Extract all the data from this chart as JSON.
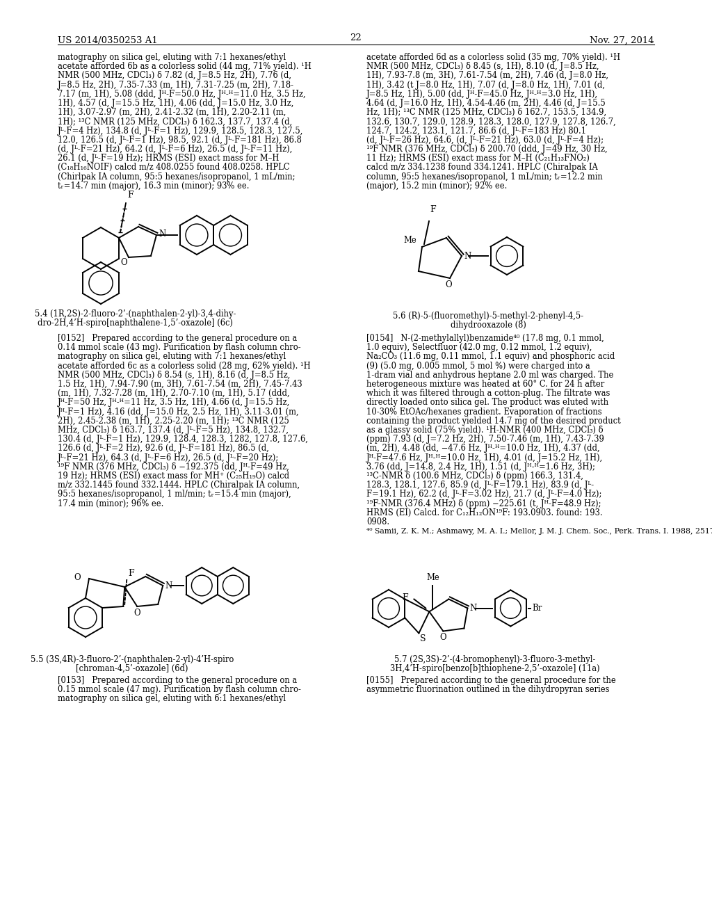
{
  "page_header_left": "US 2014/0350253 A1",
  "page_header_right": "Nov. 27, 2014",
  "page_number": "22",
  "bg_color": "#ffffff",
  "text_color": "#000000",
  "left_column_lines": [
    "matography on silica gel, eluting with 7:1 hexanes/ethyl",
    "acetate afforded 6b as a colorless solid (44 mg, 71% yield). ¹H",
    "NMR (500 MHz, CDCl₃) δ 7.82 (d, J=8.5 Hz, 2H), 7.76 (d,",
    "J=8.5 Hz, 2H), 7.35-7.33 (m, 1H), 7.31-7.25 (m, 2H), 7.18-",
    "7.17 (m, 1H), 5.08 (ddd, Jᴴ-F=50.0 Hz, Jᴴ-ᴴ=11.0 Hz, 3.5 Hz,",
    "1H), 4.57 (d, J=15.5 Hz, 1H), 4.06 (dd, J=15.0 Hz, 3.0 Hz,",
    "1H), 3.07-2.97 (m, 2H), 2.41-2.32 (m, 1H), 2.20-2.11 (m,",
    "1H); ¹³C NMR (125 MHz, CDCl₃) δ 162.3, 137.7, 137.4 (d,",
    "Jᴸ-F=4 Hz), 134.8 (d, Jᴸ-F=1 Hz), 129.9, 128.5, 128.3, 127.5,",
    "12.0, 126.5 (d, Jᴸ-F=1 Hz), 98.5, 92.1 (d, Jᴸ-F=181 Hz), 86.8",
    "(d, Jᴸ-F=21 Hz), 64.2 (d, Jᴸ-F=6 Hz), 26.5 (d, Jᴸ-F=11 Hz),",
    "26.1 (d, Jᴸ-F=19 Hz); HRMS (ESI) exact mass for M–H",
    "(C₁₈H₁₆NOIF) calcd m/z 408.0255 found 408.0258. HPLC",
    "(Chirlpak IA column, 95:5 hexanes/isopropanol, 1 mL/min;",
    "tᵣ=14.7 min (major), 16.3 min (minor); 93% ee."
  ],
  "right_column_lines": [
    "acetate afforded 6d as a colorless solid (35 mg, 70% yield). ¹H",
    "NMR (500 MHz, CDCl₃) δ 8.45 (s, 1H), 8.10 (d, J=8.5 Hz,",
    "1H), 7.93-7.8 (m, 3H), 7.61-7.54 (m, 2H), 7.46 (d, J=8.0 Hz,",
    "1H), 3.42 (t J=8.0 Hz, 1H), 7.07 (d, J=8.0 Hz, 1H), 7.01 (d,",
    "J=8.5 Hz, 1H), 5.00 (dd, Jᴴ-F=45.0 Hz, Jᴴ-ᴴ=3.0 Hz, 1H),",
    "4.64 (d, J=16.0 Hz, 1H), 4.54-4.46 (m, 2H), 4.46 (d, J=15.5",
    "Hz, 1H); ¹³C NMR (125 MHz, CDCl₃) δ 162.7, 153.5, 134.9,",
    "132.6, 130.7, 129.0, 128.9, 128.3, 128.0, 127.9, 127.8, 126.7,",
    "124.7, 124.2, 123.1, 121.7, 86.6 (d, Jᴸ-F=183 Hz) 80.1",
    "(d, Jᴸ-F=26 Hz), 64.6, (d, Jᴸ-F=21 Hz), 63.0 (d, Jᴸ-F=4 Hz);",
    "¹⁹F NMR (376 MHz, CDCl₃) δ 200.70 (ddd, J=49 Hz, 30 Hz,",
    "11 Hz); HRMS (ESI) exact mass for M–H (C₂₁H₁₃FNO₂)",
    "calcd m/z 334.1238 found 334.1241. HPLC (Chiralpak IA",
    "column, 95:5 hexanes/isopropanol, 1 mL/min; tᵣ=12.2 min",
    "(major), 15.2 min (minor); 92% ee."
  ],
  "struct1_caption_line1": "5.4 (1R,2S)-2-fluoro-2’-(naphthalen-2-yl)-3,4-dihy-",
  "struct1_caption_line2": "dro-2H,4’H-spiro[naphthalene-1,5’-oxazole] (6c)",
  "struct2_caption_line1": "5.6 (R)-5-(fluoromethyl)-5-methyl-2-phenyl-4,5-",
  "struct2_caption_line2": "dihydrooxazole (8)",
  "struct3_caption_line1": "5.5 (3S,4R)-3-fluoro-2’-(naphthalen-2-yl)-4’H-spiro",
  "struct3_caption_line2": "[chroman-4,5’-oxazole] (6d)",
  "struct4_caption_line1": "5.7 (2S,3S)-2’-(4-bromophenyl)-3-fluoro-3-methyl-",
  "struct4_caption_line2": "3H,4’H-spiro[benzo[b]thiophene-2,5’-oxazole] (11a)",
  "para_0152_lines": [
    "[0152]   Prepared according to the general procedure on a",
    "0.14 mmol scale (43 mg). Purification by flash column chro-",
    "matography on silica gel, eluting with 7:1 hexanes/ethyl",
    "acetate afforded 6c as a colorless solid (28 mg, 62% yield). ¹H",
    "NMR (500 MHz, CDCl₃) δ 8.54 (s, 1H), 8.16 (d, J=8.5 Hz,",
    "1.5 Hz, 1H), 7.94-7.90 (m, 3H), 7.61-7.54 (m, 2H), 7.45-7.43",
    "(m, 1H), 7.32-7.28 (m, 1H), 2.70-7.10 (m, 1H), 5.17 (ddd,",
    "Jᴴ-F=50 Hz, Jᴴ-ᴴ=11 Hz, 3.5 Hz, 1H), 4.66 (d, J=15.5 Hz,",
    "Jᴴ-F=1 Hz), 4.16 (dd, J=15.0 Hz, 2.5 Hz, 1H), 3.11-3.01 (m,",
    "2H), 2.45-2.38 (m, 1H), 2.25-2.20 (m, 1H); ¹³C NMR (125",
    "MHz, CDCl₃) δ 163.7, 137.4 (d, Jᴸ-F=5 Hz), 134.8, 132.7,",
    "130.4 (d, Jᴸ-F=1 Hz), 129.9, 128.4, 128.3, 1282, 127.8, 127.6,",
    "126.6 (d, Jᴸ-F=2 Hz), 92.6 (d, Jᴸ-F=181 Hz), 86.5 (d,",
    "Jᴸ-F=21 Hz), 64.3 (d, Jᴸ-F=6 Hz), 26.5 (d, Jᴸ-F=20 Hz);",
    "¹⁹F NMR (376 MHz, CDCl₃) δ −192.375 (dd, Jᴴ-F=49 Hz,",
    "19 Hz); HRMS (ESI) exact mass for MH⁺ (C₂₅H₁₉O) calcd",
    "m/z 332.1445 found 332.1444. HPLC (Chiralpak IA column,",
    "95:5 hexanes/isopropanol, 1 ml/min; tᵣ=15.4 min (major),",
    "17.4 min (minor); 96% ee."
  ],
  "para_0154_lines": [
    "[0154]   N-(2-methylallyl)benzamide⁴⁰ (17.8 mg, 0.1 mmol,",
    "1.0 equiv), Selectfluor (42.0 mg, 0.12 mmol, 1.2 equiv),",
    "Na₂CO₃ (11.6 mg, 0.11 mmol, 1.1 equiv) and phosphoric acid",
    "(9) (5.0 mg, 0.005 mmol, 5 mol %) were charged into a",
    "1-dram vial and anhydrous heptane 2.0 ml was charged. The",
    "heterogeneous mixture was heated at 60° C. for 24 h after",
    "which it was filtered through a cotton-plug. The filtrate was",
    "directly loaded onto silica gel. The product was eluted with",
    "10-30% EtOAc/hexanes gradient. Evaporation of fractions",
    "containing the product yielded 14.7 mg of the desired product",
    "as a glassy solid (75% yield). ¹H-NMR (400 MHz, CDCl₃) δ",
    "(ppm) 7.93 (d, J=7.2 Hz, 2H), 7.50-7.46 (m, 1H), 7.43-7.39",
    "(m, 2H), 4.48 (dd, −47.6 Hz, Jᴴ-ᴴ=10.0 Hz, 1H), 4.37 (dd,",
    "Jᴴ-F=47.6 Hz, Jᴴ-ᴴ=10.0 Hz, 1H), 4.01 (d, J=15.2 Hz, 1H),",
    "3.76 (dd, J=14.8, 2.4 Hz, 1H), 1.51 (d, Jᴴ-ᴴ=1.6 Hz, 3H);",
    "¹³C-NMR δ (100.6 MHz, CDCl₃) δ (ppm) 166.3, 131.4,",
    "128.3, 128.1, 127.6, 85.9 (d, Jᴸ-F=179.1 Hz), 83.9 (d, Jᴸ-",
    "F=19.1 Hz), 62.2 (d, Jᴸ-F=3.02 Hz), 21.7 (d, Jᴸ-F=4.0 Hz);",
    "¹⁹F-NMR (376.4 MHz) δ (ppm) −225.61 (t, Jᴴ-F=48.9 Hz);",
    "HRMS (EI) Calcd. for C₁₂H₁₂ON¹⁹F: 193.0903. found: 193.",
    "0908."
  ],
  "footnote": "⁴⁰ Samii, Z. K. M.; Ashmawy, M. A. I.; Mellor, J. M. J. Chem. Soc., Perk. Trans. I. 1988, 2517.",
  "para_0153_lines": [
    "[0153]   Prepared according to the general procedure on a",
    "0.15 mmol scale (47 mg). Purification by flash column chro-",
    "matography on silica gel, eluting with 6:1 hexanes/ethyl"
  ],
  "para_0155_lines": [
    "[0155]   Prepared according to the general procedure for the",
    "asymmetric fluorination outlined in the dihydropyran series"
  ]
}
